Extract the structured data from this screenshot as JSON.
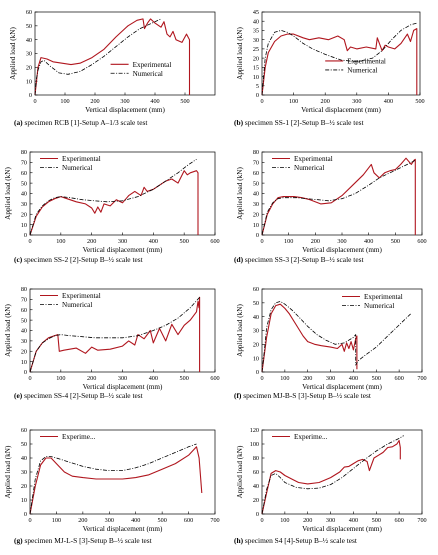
{
  "colors": {
    "experimental": "#b0161e",
    "numerical": "#000000",
    "axis": "#000000"
  },
  "chart_data": [
    {
      "type": "line",
      "caption_id": "(a)",
      "caption_text": "specimen RCB [1]-Setup A–1/3 scale test",
      "xlabel": "Vertical displacement (mm)",
      "ylabel": "Applied load (kN)",
      "xlim": [
        0,
        600
      ],
      "ylim": [
        0,
        60
      ],
      "xticks": [
        0,
        100,
        200,
        300,
        400,
        500
      ],
      "yticks": [
        0,
        10,
        20,
        30,
        40,
        50,
        60
      ],
      "legend": "right",
      "series": [
        {
          "name": "Experimental",
          "style": "solid",
          "x": [
            0,
            5,
            10,
            20,
            40,
            60,
            90,
            120,
            150,
            190,
            230,
            270,
            310,
            340,
            360,
            365,
            375,
            385,
            400,
            420,
            430,
            440,
            450,
            460,
            470,
            490,
            505,
            515,
            515
          ],
          "y": [
            0,
            10,
            20,
            27,
            26,
            24,
            23,
            22,
            23,
            27,
            33,
            42,
            50,
            54,
            55,
            48,
            52,
            55,
            52,
            49,
            53,
            44,
            42,
            46,
            40,
            38,
            44,
            40,
            0
          ]
        },
        {
          "name": "Numerical",
          "style": "dashdot",
          "x": [
            0,
            5,
            10,
            20,
            30,
            50,
            80,
            110,
            150,
            190,
            230,
            270,
            310,
            350,
            390,
            420
          ],
          "y": [
            0,
            12,
            18,
            24,
            25,
            21,
            16,
            15,
            17,
            22,
            28,
            35,
            42,
            48,
            52,
            55
          ]
        }
      ]
    },
    {
      "type": "line",
      "caption_id": "(b)",
      "caption_text": "specimen SS-1 [2]-Setup B–½ scale test",
      "xlabel": "Vertical displacement (mm)",
      "ylabel": "Applied load (kN)",
      "xlim": [
        0,
        500
      ],
      "ylim": [
        0,
        45
      ],
      "xticks": [
        0,
        100,
        200,
        300,
        400,
        500
      ],
      "yticks": [
        0,
        5,
        10,
        15,
        20,
        25,
        30,
        35,
        40,
        45
      ],
      "legend": "center-right",
      "series": [
        {
          "name": "Experimental",
          "style": "solid",
          "x": [
            0,
            10,
            20,
            40,
            60,
            80,
            100,
            130,
            150,
            180,
            210,
            240,
            260,
            270,
            280,
            300,
            330,
            360,
            365,
            380,
            390,
            400,
            420,
            440,
            460,
            470,
            480,
            490,
            490
          ],
          "y": [
            0,
            15,
            23,
            29,
            32,
            33,
            33,
            31,
            30,
            31,
            30,
            32,
            30,
            24,
            26,
            25,
            26,
            25,
            31,
            24,
            27,
            26,
            25,
            28,
            33,
            29,
            35,
            36,
            0
          ]
        },
        {
          "name": "Numerical",
          "style": "dashdot",
          "x": [
            0,
            10,
            20,
            40,
            60,
            80,
            100,
            130,
            160,
            200,
            250,
            300,
            350,
            380,
            410,
            440,
            470,
            490
          ],
          "y": [
            0,
            20,
            28,
            34,
            35,
            34,
            32,
            28,
            25,
            22,
            19,
            18,
            20,
            24,
            30,
            35,
            38,
            39
          ]
        }
      ]
    },
    {
      "type": "line",
      "caption_id": "(c)",
      "caption_text": "specimen SS-2 [2]-Setup B–½ scale test",
      "xlabel": "Vertical displacement (mm)",
      "ylabel": "Applied load (kN)",
      "xlim": [
        0,
        600
      ],
      "ylim": [
        0,
        80
      ],
      "xticks": [
        0,
        100,
        200,
        300,
        400,
        500,
        600
      ],
      "yticks": [
        0,
        10,
        20,
        30,
        40,
        50,
        60,
        70,
        80
      ],
      "legend": "top-left",
      "series": [
        {
          "name": "Experimental",
          "style": "solid",
          "x": [
            0,
            20,
            40,
            60,
            80,
            100,
            120,
            150,
            180,
            200,
            210,
            220,
            230,
            240,
            260,
            280,
            300,
            320,
            340,
            360,
            370,
            380,
            400,
            420,
            440,
            460,
            480,
            500,
            510,
            520,
            540,
            545,
            545
          ],
          "y": [
            0,
            18,
            27,
            32,
            35,
            37,
            35,
            32,
            30,
            26,
            21,
            27,
            22,
            30,
            28,
            34,
            31,
            38,
            42,
            38,
            46,
            42,
            44,
            48,
            52,
            54,
            50,
            62,
            58,
            60,
            62,
            60,
            0
          ]
        },
        {
          "name": "Numerical",
          "style": "dashdot",
          "x": [
            0,
            20,
            40,
            60,
            80,
            100,
            130,
            170,
            210,
            250,
            300,
            350,
            400,
            440,
            480,
            510,
            540
          ],
          "y": [
            0,
            20,
            28,
            33,
            36,
            37,
            36,
            34,
            33,
            32,
            33,
            37,
            44,
            52,
            60,
            67,
            73
          ]
        }
      ]
    },
    {
      "type": "line",
      "caption_id": "(d)",
      "caption_text": "specimen SS-3 [2]-Setup B–½ scale test",
      "xlabel": "Vertical displacement (mm)",
      "ylabel": "Applied load (kN)",
      "xlim": [
        0,
        600
      ],
      "ylim": [
        0,
        80
      ],
      "xticks": [
        0,
        100,
        200,
        300,
        400,
        500,
        600
      ],
      "yticks": [
        0,
        10,
        20,
        30,
        40,
        50,
        60,
        70,
        80
      ],
      "legend": "top-left",
      "series": [
        {
          "name": "Experimental",
          "style": "solid",
          "x": [
            0,
            20,
            40,
            60,
            80,
            100,
            120,
            150,
            180,
            220,
            260,
            300,
            340,
            380,
            410,
            420,
            440,
            460,
            480,
            500,
            520,
            540,
            560,
            570,
            575,
            575
          ],
          "y": [
            0,
            20,
            30,
            36,
            37,
            37,
            37,
            36,
            34,
            30,
            31,
            38,
            48,
            58,
            68,
            60,
            55,
            60,
            62,
            63,
            68,
            74,
            68,
            72,
            73,
            0
          ]
        },
        {
          "name": "Numerical",
          "style": "dashdot",
          "x": [
            0,
            20,
            40,
            60,
            80,
            100,
            130,
            170,
            210,
            250,
            300,
            350,
            400,
            440,
            480,
            520,
            560,
            575
          ],
          "y": [
            0,
            22,
            31,
            35,
            36,
            36,
            36,
            35,
            34,
            33,
            35,
            40,
            48,
            55,
            60,
            65,
            70,
            72
          ]
        }
      ]
    },
    {
      "type": "line",
      "caption_id": "(e)",
      "caption_text": "specimen SS-4 [2]-Setup B–½ scale test",
      "xlabel": "Vertical displacement (mm)",
      "ylabel": "Applied load (kN)",
      "xlim": [
        0,
        600
      ],
      "ylim": [
        0,
        80
      ],
      "xticks": [
        0,
        100,
        200,
        300,
        400,
        500,
        600
      ],
      "yticks": [
        0,
        10,
        20,
        30,
        40,
        50,
        60,
        70,
        80
      ],
      "legend": "top-left",
      "series": [
        {
          "name": "Experimental",
          "style": "solid",
          "x": [
            0,
            20,
            40,
            60,
            80,
            90,
            95,
            110,
            150,
            180,
            200,
            220,
            260,
            300,
            320,
            340,
            350,
            370,
            390,
            400,
            420,
            440,
            460,
            480,
            500,
            520,
            540,
            545,
            548,
            550,
            550
          ],
          "y": [
            0,
            20,
            28,
            33,
            35,
            36,
            20,
            21,
            23,
            18,
            24,
            21,
            22,
            25,
            30,
            26,
            36,
            32,
            40,
            28,
            42,
            30,
            46,
            36,
            45,
            50,
            58,
            68,
            62,
            72,
            0
          ]
        },
        {
          "name": "Numerical",
          "style": "dashdot",
          "x": [
            0,
            20,
            40,
            60,
            80,
            100,
            130,
            170,
            210,
            250,
            300,
            350,
            400,
            440,
            480,
            520,
            550
          ],
          "y": [
            0,
            20,
            28,
            32,
            35,
            36,
            35,
            34,
            33,
            33,
            33,
            35,
            40,
            45,
            52,
            62,
            72
          ]
        }
      ]
    },
    {
      "type": "line",
      "caption_id": "(f)",
      "caption_text": "specimen MJ-B-S [3]-Setup B–½ scale test",
      "xlabel": "Vertical displacement (mm)",
      "ylabel": "Applied load (kN)",
      "xlim": [
        0,
        700
      ],
      "ylim": [
        0,
        60
      ],
      "xticks": [
        0,
        100,
        200,
        300,
        400,
        500,
        600,
        700
      ],
      "yticks": [
        0,
        10,
        20,
        30,
        40,
        50,
        60
      ],
      "legend": "top-right",
      "series": [
        {
          "name": "Experimental",
          "style": "solid",
          "x": [
            0,
            20,
            40,
            60,
            80,
            100,
            120,
            150,
            180,
            200,
            230,
            260,
            300,
            330,
            350,
            360,
            370,
            380,
            390,
            400,
            410,
            415,
            415
          ],
          "y": [
            0,
            25,
            42,
            48,
            49,
            46,
            42,
            34,
            26,
            22,
            20,
            19,
            18,
            17,
            20,
            15,
            21,
            17,
            22,
            16,
            24,
            26,
            2
          ]
        },
        {
          "name": "Numerical",
          "style": "dashdot",
          "x": [
            0,
            10,
            20,
            40,
            60,
            80,
            100,
            130,
            160,
            200,
            240,
            280,
            320,
            360,
            400,
            410,
            410,
            420,
            450,
            500,
            550,
            600,
            650
          ],
          "y": [
            0,
            15,
            32,
            45,
            50,
            51,
            49,
            45,
            40,
            33,
            27,
            23,
            20,
            21,
            25,
            27,
            5,
            8,
            12,
            18,
            26,
            34,
            42
          ]
        }
      ]
    },
    {
      "type": "line",
      "caption_id": "(g)",
      "caption_text": "specimen MJ-L-S [3]-Setup B–½ scale test",
      "xlabel": "Vertical displacement (mm)",
      "ylabel": "Applied load (kN)",
      "xlim": [
        0,
        700
      ],
      "ylim": [
        0,
        60
      ],
      "xticks": [
        0,
        100,
        200,
        300,
        400,
        500,
        600,
        700
      ],
      "yticks": [
        0,
        10,
        20,
        30,
        40,
        50,
        60
      ],
      "legend": "top-left",
      "series": [
        {
          "name": "Experime...",
          "style": "solid",
          "x": [
            0,
            20,
            40,
            60,
            80,
            100,
            130,
            160,
            200,
            250,
            300,
            350,
            400,
            450,
            500,
            550,
            600,
            630,
            640,
            650
          ],
          "y": [
            0,
            20,
            35,
            40,
            40,
            36,
            30,
            27,
            26,
            25,
            25,
            25,
            26,
            28,
            32,
            36,
            42,
            48,
            40,
            15
          ]
        },
        {
          "name": "",
          "style": "dashdot",
          "x": [
            0,
            20,
            40,
            60,
            80,
            100,
            150,
            200,
            250,
            300,
            350,
            400,
            450,
            500,
            550,
            600,
            630
          ],
          "y": [
            0,
            25,
            38,
            41,
            41,
            40,
            37,
            34,
            32,
            31,
            31,
            33,
            36,
            40,
            44,
            48,
            50
          ]
        }
      ]
    },
    {
      "type": "line",
      "caption_id": "(h)",
      "caption_text": "specimen S4 [4]-Setup B–½ scale test",
      "xlabel": "Vertical displacement (mm)",
      "ylabel": "Applied load (kN)",
      "xlim": [
        0,
        700
      ],
      "ylim": [
        0,
        120
      ],
      "xticks": [
        0,
        100,
        200,
        300,
        400,
        500,
        600,
        700
      ],
      "yticks": [
        0,
        20,
        40,
        60,
        80,
        100,
        120
      ],
      "legend": "top-left",
      "series": [
        {
          "name": "Experime...",
          "style": "solid",
          "x": [
            0,
            20,
            40,
            60,
            80,
            100,
            130,
            160,
            200,
            250,
            300,
            340,
            360,
            380,
            400,
            420,
            440,
            460,
            470,
            490,
            510,
            530,
            550,
            570,
            590,
            600,
            605,
            605
          ],
          "y": [
            0,
            30,
            58,
            62,
            60,
            55,
            50,
            45,
            43,
            45,
            52,
            60,
            67,
            68,
            72,
            76,
            78,
            75,
            62,
            80,
            84,
            88,
            95,
            96,
            100,
            105,
            95,
            78
          ]
        },
        {
          "name": "",
          "style": "dashdot",
          "x": [
            0,
            20,
            40,
            60,
            80,
            100,
            150,
            200,
            250,
            300,
            350,
            400,
            450,
            500,
            550,
            600,
            620
          ],
          "y": [
            0,
            35,
            55,
            58,
            52,
            45,
            38,
            36,
            37,
            42,
            52,
            65,
            78,
            90,
            100,
            108,
            112
          ]
        }
      ]
    }
  ]
}
